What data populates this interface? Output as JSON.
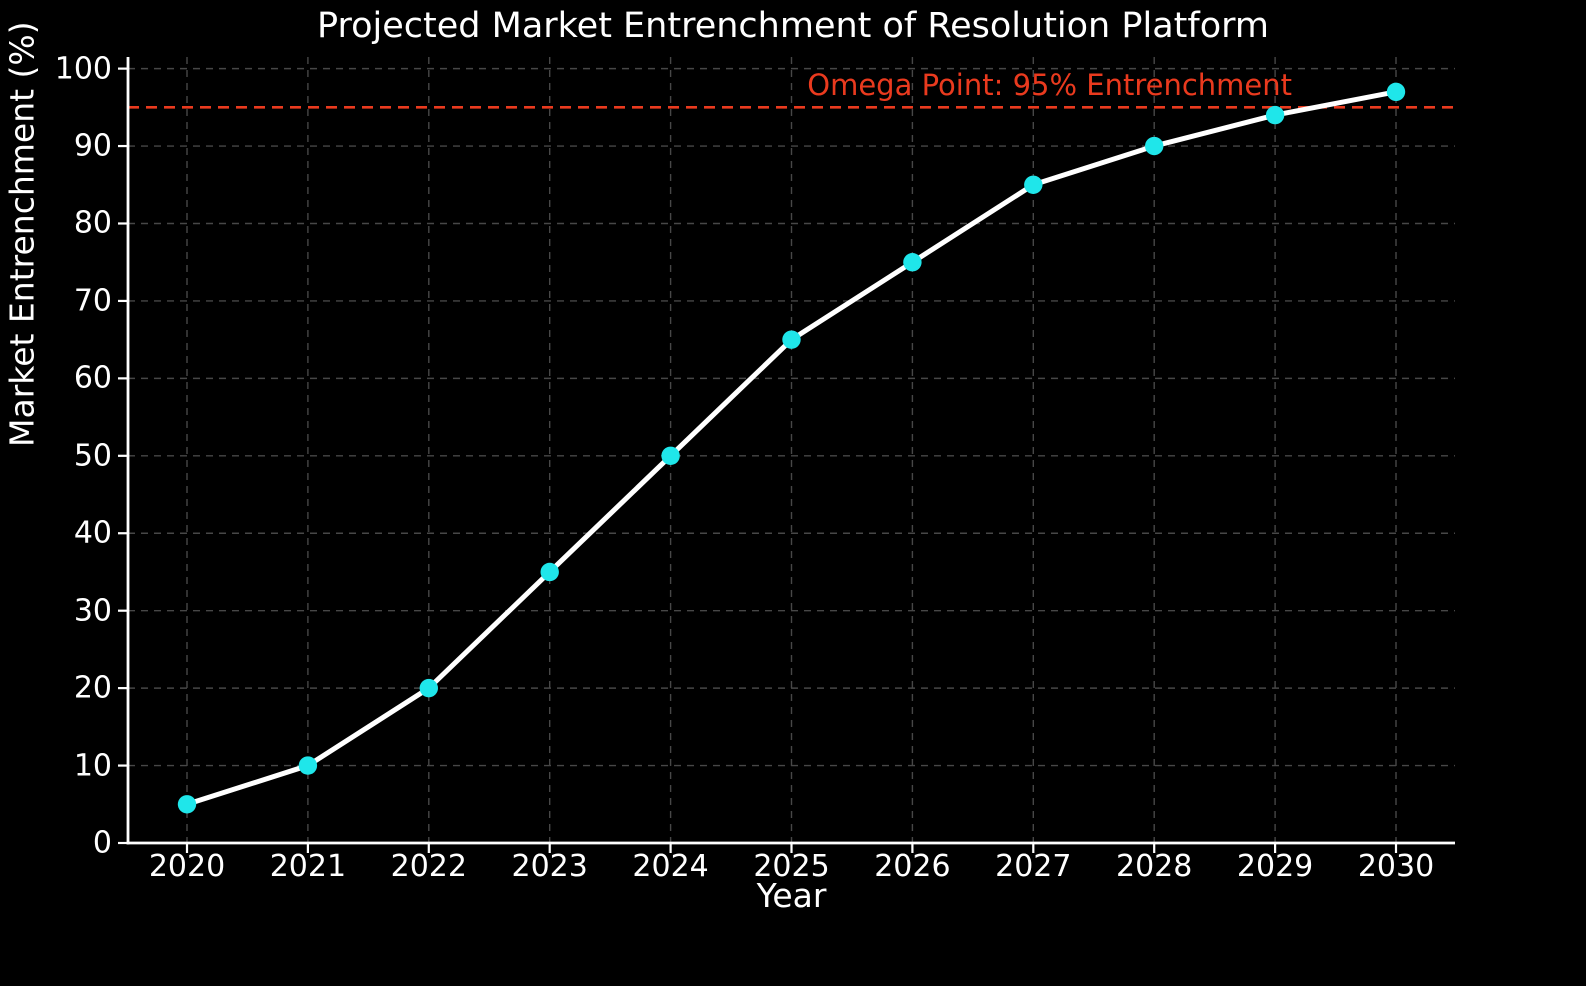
{
  "chart_data": {
    "type": "line",
    "title": "Projected Market Entrenchment of Resolution Platform",
    "xlabel": "Year",
    "ylabel": "Market Entrenchment (%)",
    "categories": [
      "2020",
      "2021",
      "2022",
      "2023",
      "2024",
      "2025",
      "2026",
      "2027",
      "2028",
      "2029",
      "2030"
    ],
    "series": [
      {
        "name": "Market Entrenchment",
        "values": [
          5,
          10,
          20,
          35,
          50,
          65,
          75,
          85,
          90,
          94,
          97
        ]
      }
    ],
    "yticks": [
      0,
      10,
      20,
      30,
      40,
      50,
      60,
      70,
      80,
      90,
      100
    ],
    "ylim": [
      0,
      101.5
    ],
    "grid": true,
    "legend_position": "none",
    "reference_line": {
      "y": 95,
      "label": "Omega Point: 95% Entrenchment",
      "style": "dashed"
    },
    "colors": {
      "background": "#000000",
      "line": "#ffffff",
      "marker": "#1fe6ea",
      "grid": "#474747",
      "spine": "#ffffff",
      "text": "#ffffff",
      "reference": "#ea3a1e"
    }
  }
}
